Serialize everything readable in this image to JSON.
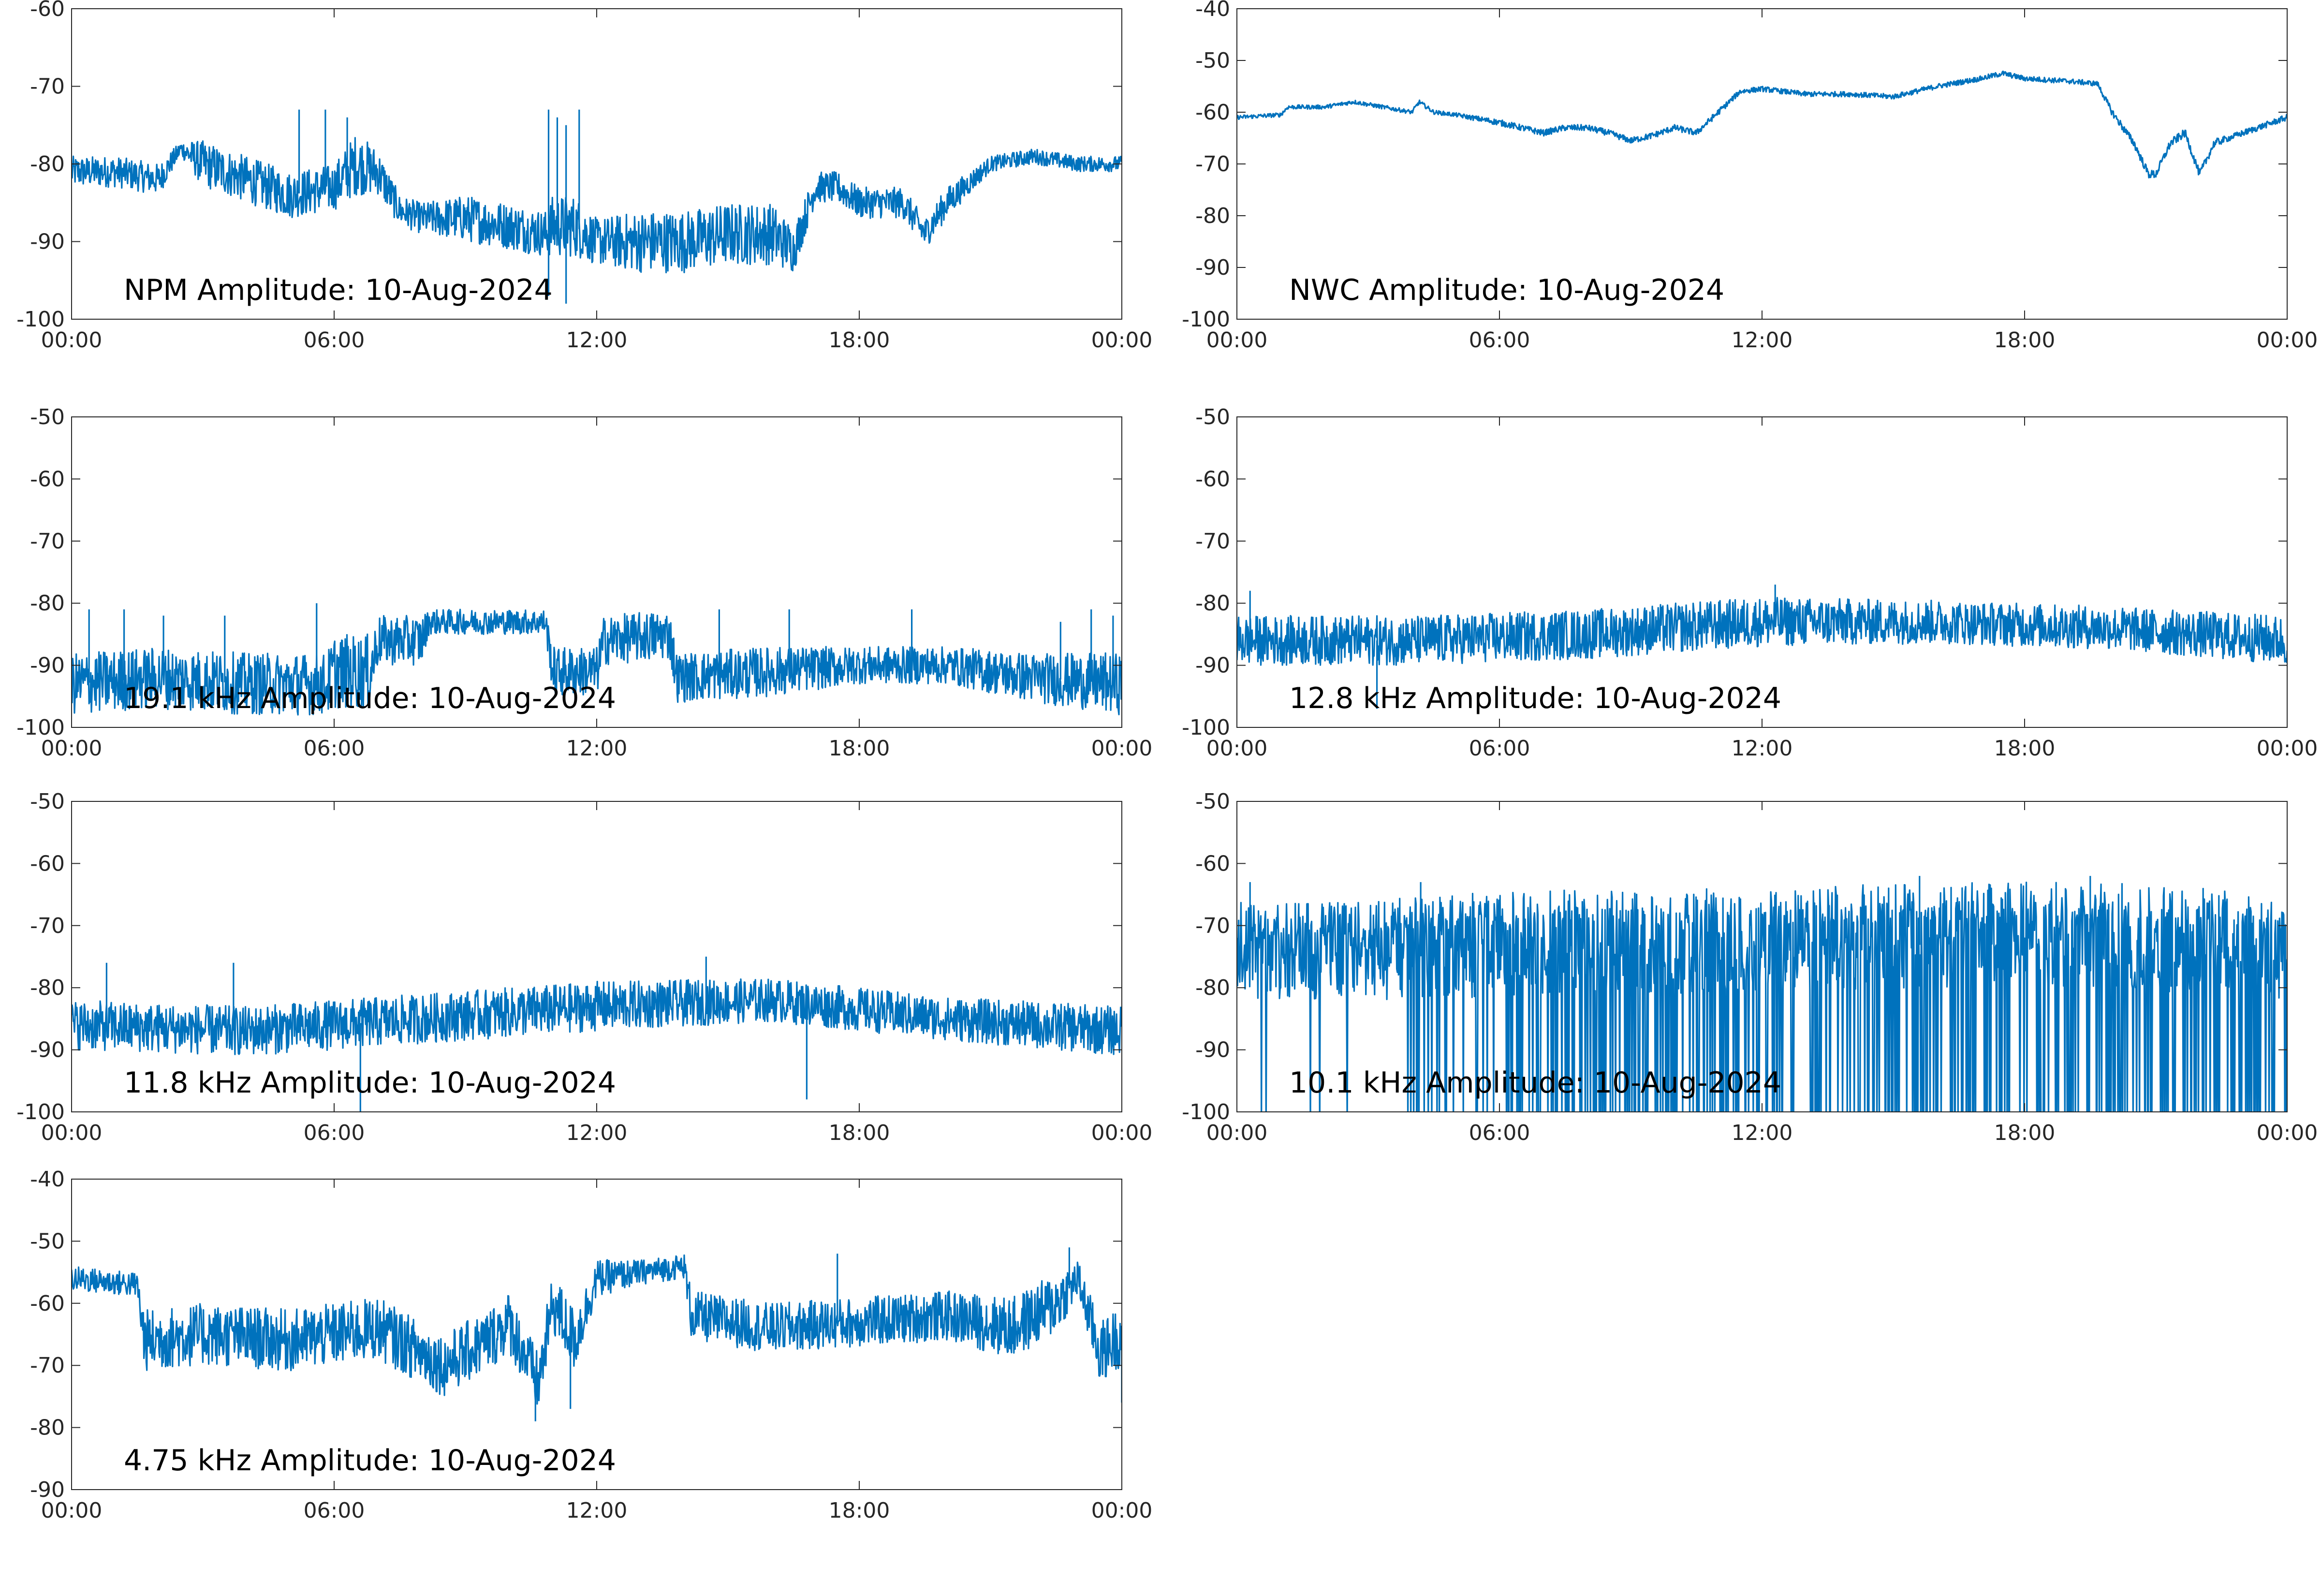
{
  "figure": {
    "trace_color": "#0072bd",
    "axis_color": "#262626"
  },
  "chart_data": [
    {
      "type": "line",
      "title": "NPM Amplitude: 10-Aug-2024",
      "ylim": [
        -100,
        -60
      ],
      "yticks": [
        -100,
        -90,
        -80,
        -70,
        -60
      ],
      "ytick_labels": [
        "-100",
        "-90",
        "-80",
        "-70",
        "-60"
      ],
      "xlim": [
        "00:00",
        "24:00"
      ],
      "xtick_labels": [
        "00:00",
        "06:00",
        "12:00",
        "18:00",
        "00:00"
      ],
      "xlabel": "",
      "ylabel": "",
      "grid": false,
      "series": [
        {
          "x": [
            "00:00",
            "01:00",
            "02:00",
            "02:30",
            "03:00",
            "04:00",
            "05:00",
            "06:00",
            "06:30",
            "07:00",
            "07:30",
            "08:00",
            "09:00",
            "10:00",
            "10:50",
            "11:00",
            "11:30",
            "12:00",
            "13:00",
            "14:00",
            "15:00",
            "16:00",
            "16:30",
            "17:00",
            "17:30",
            "18:00",
            "19:00",
            "19:30",
            "20:00",
            "21:00",
            "22:00",
            "23:00",
            "24:00"
          ],
          "values": [
            -81,
            -81,
            -82,
            -78,
            -80,
            -82,
            -84,
            -83,
            -80,
            -81,
            -86,
            -87,
            -87,
            -88,
            -89,
            -88,
            -88,
            -90,
            -90,
            -90,
            -89,
            -89,
            -91,
            -83,
            -83,
            -85,
            -85,
            -89,
            -85,
            -80,
            -79,
            -80,
            -80
          ],
          "noise": [
            2,
            2,
            2,
            1,
            3,
            3,
            3,
            3,
            4,
            3,
            2,
            2,
            3,
            3,
            3,
            4,
            4,
            3,
            4,
            4,
            4,
            4,
            3,
            2,
            2,
            2,
            2,
            2,
            2,
            1,
            1,
            1,
            1
          ],
          "spikes": [
            [
              5.2,
              -73
            ],
            [
              5.8,
              -73
            ],
            [
              6.3,
              -74
            ],
            [
              10.9,
              -73
            ],
            [
              11.1,
              -74
            ],
            [
              11.3,
              -75
            ],
            [
              11.6,
              -73
            ],
            [
              10.9,
              -97
            ],
            [
              11.3,
              -98
            ]
          ]
        }
      ]
    },
    {
      "type": "line",
      "title": "NWC Amplitude: 10-Aug-2024",
      "ylim": [
        -100,
        -40
      ],
      "yticks": [
        -100,
        -90,
        -80,
        -70,
        -60,
        -50,
        -40
      ],
      "ytick_labels": [
        "-100",
        "-90",
        "-80",
        "-70",
        "-60",
        "-50",
        "-40"
      ],
      "xlim": [
        "00:00",
        "24:00"
      ],
      "xtick_labels": [
        "00:00",
        "06:00",
        "12:00",
        "18:00",
        "00:00"
      ],
      "xlabel": "",
      "ylabel": "",
      "grid": false,
      "series": [
        {
          "x": [
            "00:00",
            "01:00",
            "01:10",
            "02:00",
            "02:40",
            "03:00",
            "04:00",
            "04:10",
            "04:30",
            "05:00",
            "06:00",
            "07:00",
            "07:30",
            "08:00",
            "08:30",
            "09:00",
            "09:30",
            "10:00",
            "10:30",
            "11:00",
            "11:30",
            "12:00",
            "13:00",
            "14:00",
            "15:00",
            "16:00",
            "17:00",
            "17:30",
            "18:00",
            "19:00",
            "19:40",
            "20:00",
            "20:30",
            "20:50",
            "21:00",
            "21:20",
            "21:40",
            "22:00",
            "22:20",
            "22:40",
            "23:00",
            "24:00"
          ],
          "values": [
            -61,
            -60.5,
            -59,
            -59,
            -58,
            -58.5,
            -60,
            -58,
            -60,
            -60.5,
            -62,
            -64,
            -63,
            -63,
            -64,
            -65.5,
            -64.5,
            -63,
            -64,
            -60,
            -56,
            -55.5,
            -56.5,
            -56.5,
            -57,
            -55,
            -53.5,
            -52.5,
            -53.5,
            -54,
            -54.5,
            -60,
            -66,
            -72,
            -72,
            -66,
            -64,
            -72,
            -66,
            -65,
            -64,
            -61
          ],
          "noise": [
            0.4,
            0.4,
            0.4,
            0.4,
            0.4,
            0.4,
            0.4,
            0.4,
            0.4,
            0.4,
            0.6,
            0.6,
            0.6,
            0.6,
            0.6,
            0.6,
            0.6,
            0.6,
            0.6,
            0.6,
            0.5,
            0.5,
            0.5,
            0.5,
            0.5,
            0.5,
            0.5,
            0.5,
            0.5,
            0.5,
            0.5,
            0.7,
            0.8,
            0.8,
            0.8,
            0.8,
            0.8,
            0.8,
            0.8,
            0.6,
            0.6,
            0.6
          ],
          "spikes": []
        }
      ]
    },
    {
      "type": "line",
      "title": "19.1 kHz Amplitude: 10-Aug-2024",
      "ylim": [
        -100,
        -50
      ],
      "yticks": [
        -100,
        -90,
        -80,
        -70,
        -60,
        -50
      ],
      "ytick_labels": [
        "-100",
        "-90",
        "-80",
        "-70",
        "-60",
        "-50"
      ],
      "xlim": [
        "00:00",
        "24:00"
      ],
      "xtick_labels": [
        "00:00",
        "06:00",
        "12:00",
        "18:00",
        "00:00"
      ],
      "xlabel": "",
      "ylabel": "",
      "grid": false,
      "series": [
        {
          "x": [
            "00:00",
            "02:00",
            "04:00",
            "05:50",
            "06:00",
            "06:50",
            "07:00",
            "08:00",
            "08:10",
            "10:50",
            "11:00",
            "12:00",
            "12:10",
            "13:40",
            "13:50",
            "16:00",
            "18:00",
            "20:00",
            "22:00",
            "24:00"
          ],
          "values": [
            -93,
            -92,
            -93,
            -93,
            -91,
            -91,
            -86,
            -86,
            -83,
            -83,
            -91,
            -91,
            -86,
            -85,
            -92,
            -91,
            -90,
            -90,
            -92,
            -93
          ],
          "noise": [
            5,
            5,
            5,
            5,
            6,
            6,
            4,
            4,
            2,
            2,
            4,
            4,
            4,
            4,
            4,
            4,
            3,
            3,
            4,
            5
          ],
          "spikes": [
            [
              0.4,
              -81
            ],
            [
              1.2,
              -81
            ],
            [
              2.1,
              -82
            ],
            [
              3.5,
              -82
            ],
            [
              5.6,
              -80
            ],
            [
              14.8,
              -81
            ],
            [
              16.4,
              -81
            ],
            [
              19.2,
              -81
            ],
            [
              22.6,
              -83
            ],
            [
              23.3,
              -81
            ],
            [
              23.8,
              -82
            ]
          ]
        }
      ]
    },
    {
      "type": "line",
      "title": "12.8 kHz Amplitude: 10-Aug-2024",
      "ylim": [
        -100,
        -50
      ],
      "yticks": [
        -100,
        -90,
        -80,
        -70,
        -60,
        -50
      ],
      "ytick_labels": [
        "-100",
        "-90",
        "-80",
        "-70",
        "-60",
        "-50"
      ],
      "xlim": [
        "00:00",
        "24:00"
      ],
      "xtick_labels": [
        "00:00",
        "06:00",
        "12:00",
        "18:00",
        "00:00"
      ],
      "xlabel": "",
      "ylabel": "",
      "grid": false,
      "series": [
        {
          "x": [
            "00:00",
            "04:00",
            "08:00",
            "12:00",
            "16:00",
            "20:00",
            "24:00"
          ],
          "values": [
            -86,
            -86,
            -85,
            -83,
            -83,
            -84,
            -86
          ],
          "noise": [
            4,
            4,
            4,
            4,
            3.5,
            3.5,
            4
          ],
          "spikes": [
            [
              0.3,
              -78
            ],
            [
              3.2,
              -97
            ],
            [
              12.3,
              -77
            ]
          ]
        }
      ]
    },
    {
      "type": "line",
      "title": "11.8 kHz Amplitude: 10-Aug-2024",
      "ylim": [
        -100,
        -50
      ],
      "yticks": [
        -100,
        -90,
        -80,
        -70,
        -60,
        -50
      ],
      "ytick_labels": [
        "-100",
        "-90",
        "-80",
        "-70",
        "-60",
        "-50"
      ],
      "xlim": [
        "00:00",
        "24:00"
      ],
      "xtick_labels": [
        "00:00",
        "06:00",
        "12:00",
        "18:00",
        "00:00"
      ],
      "xlabel": "",
      "ylabel": "",
      "grid": false,
      "series": [
        {
          "x": [
            "00:00",
            "04:00",
            "08:00",
            "12:00",
            "16:00",
            "20:00",
            "24:00"
          ],
          "values": [
            -86,
            -87,
            -85,
            -83,
            -82,
            -85,
            -87
          ],
          "noise": [
            4,
            4,
            4,
            4,
            3.5,
            3.5,
            4
          ],
          "spikes": [
            [
              0.8,
              -76
            ],
            [
              3.7,
              -76
            ],
            [
              6.6,
              -100
            ],
            [
              14.5,
              -75
            ],
            [
              16.8,
              -98
            ]
          ]
        }
      ]
    },
    {
      "type": "line",
      "title": "10.1 kHz Amplitude: 10-Aug-2024",
      "ylim": [
        -100,
        -50
      ],
      "yticks": [
        -100,
        -90,
        -80,
        -70,
        -60,
        -50
      ],
      "ytick_labels": [
        "-100",
        "-90",
        "-80",
        "-70",
        "-60",
        "-50"
      ],
      "xlim": [
        "00:00",
        "24:00"
      ],
      "xtick_labels": [
        "00:00",
        "06:00",
        "12:00",
        "18:00",
        "00:00"
      ],
      "xlabel": "",
      "ylabel": "",
      "grid": false,
      "series": [
        {
          "x": [
            "00:00",
            "03:30",
            "04:00",
            "08:00",
            "12:00",
            "16:00",
            "20:00",
            "24:00"
          ],
          "values": [
            -76,
            -76,
            -75,
            -74,
            -74,
            -73,
            -73,
            -75
          ],
          "noise": [
            6,
            6,
            7,
            7,
            7,
            7,
            7,
            7
          ],
          "dropout_rate": [
            0.02,
            0.02,
            0.25,
            0.35,
            0.4,
            0.4,
            0.35,
            0.3
          ],
          "spikes": [
            [
              0.3,
              -63
            ],
            [
              4.2,
              -63
            ],
            [
              15.6,
              -62
            ],
            [
              19.5,
              -62
            ]
          ]
        }
      ]
    },
    {
      "type": "line",
      "title": "4.75 kHz Amplitude: 10-Aug-2024",
      "ylim": [
        -90,
        -40
      ],
      "yticks": [
        -90,
        -80,
        -70,
        -60,
        -50,
        -40
      ],
      "ytick_labels": [
        "-90",
        "-80",
        "-70",
        "-60",
        "-50",
        "-40"
      ],
      "xlim": [
        "00:00",
        "24:00"
      ],
      "xtick_labels": [
        "00:00",
        "06:00",
        "12:00",
        "18:00",
        "00:00"
      ],
      "xlabel": "",
      "ylabel": "",
      "grid": false,
      "series": [
        {
          "x": [
            "00:00",
            "01:30",
            "01:40",
            "03:00",
            "05:00",
            "07:00",
            "08:30",
            "09:30",
            "10:00",
            "10:40",
            "11:00",
            "11:30",
            "12:00",
            "13:00",
            "14:00",
            "14:10",
            "16:00",
            "18:00",
            "20:00",
            "21:30",
            "22:30",
            "23:00",
            "23:30",
            "24:00"
          ],
          "values": [
            -56,
            -57,
            -66,
            -65,
            -66,
            -64,
            -70,
            -66,
            -63,
            -73,
            -60,
            -66,
            -56,
            -55,
            -54,
            -62,
            -64,
            -63,
            -62,
            -64,
            -60,
            -56,
            -68,
            -65
          ],
          "noise": [
            2,
            2,
            5,
            5,
            5,
            5,
            5,
            5,
            5,
            5,
            5,
            5,
            3,
            2,
            2,
            4,
            4,
            4,
            4,
            5,
            5,
            3,
            5,
            5
          ],
          "spikes": [
            [
              10.6,
              -79
            ],
            [
              11.4,
              -77
            ],
            [
              17.5,
              -52
            ],
            [
              22.8,
              -51
            ],
            [
              24,
              -76
            ]
          ]
        }
      ]
    }
  ]
}
